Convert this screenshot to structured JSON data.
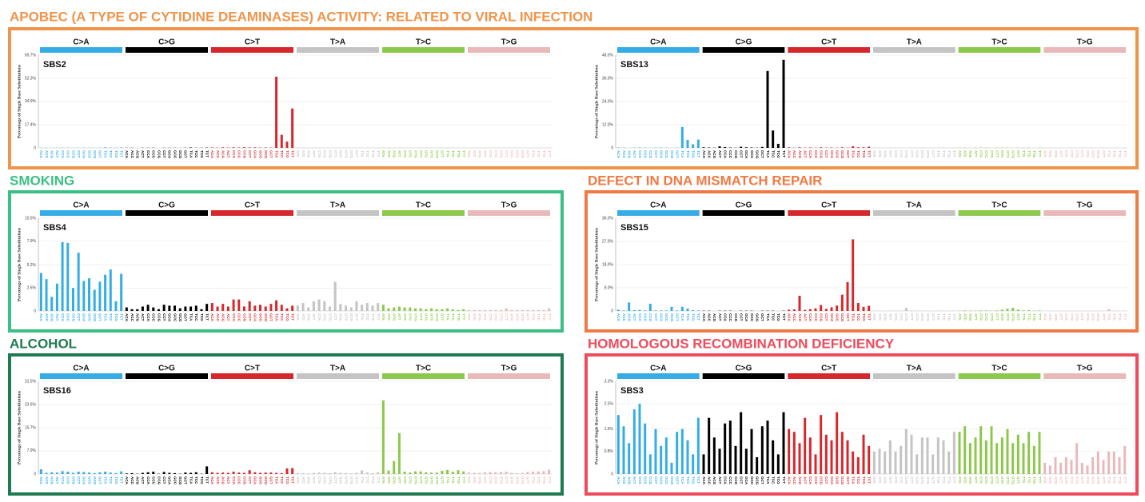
{
  "mutation_types": [
    {
      "name": "C>A",
      "color": "#35ace6"
    },
    {
      "name": "C>G",
      "color": "#000000"
    },
    {
      "name": "C>T",
      "color": "#d6282c"
    },
    {
      "name": "T>A",
      "color": "#c4c4c4"
    },
    {
      "name": "T>C",
      "color": "#8cc84b"
    },
    {
      "name": "T>G",
      "color": "#e9b9b9"
    }
  ],
  "contexts": [
    "ACA",
    "ACC",
    "ACG",
    "ACT",
    "CCA",
    "CCC",
    "CCG",
    "CCT",
    "GCA",
    "GCC",
    "GCG",
    "GCT",
    "TCA",
    "TCC",
    "TCG",
    "TCT",
    "ACA",
    "ACC",
    "ACG",
    "ACT",
    "CCA",
    "CCC",
    "CCG",
    "CCT",
    "GCA",
    "GCC",
    "GCG",
    "GCT",
    "TCA",
    "TCC",
    "TCG",
    "TCT",
    "ACA",
    "ACC",
    "ACG",
    "ACT",
    "CCA",
    "CCC",
    "CCG",
    "CCT",
    "GCA",
    "GCC",
    "GCG",
    "GCT",
    "TCA",
    "TCC",
    "TCG",
    "TCT",
    "ATA",
    "ATC",
    "ATG",
    "ATT",
    "CTA",
    "CTC",
    "CTG",
    "CTT",
    "GTA",
    "GTC",
    "GTG",
    "GTT",
    "TTA",
    "TTC",
    "TTG",
    "TTT",
    "ATA",
    "ATC",
    "ATG",
    "ATT",
    "CTA",
    "CTC",
    "CTG",
    "CTT",
    "GTA",
    "GTC",
    "GTG",
    "GTT",
    "TTA",
    "TTC",
    "TTG",
    "TTT",
    "ATA",
    "ATC",
    "ATG",
    "ATT",
    "CTA",
    "CTC",
    "CTG",
    "CTT",
    "GTA",
    "GTC",
    "GTG",
    "GTT",
    "TTA",
    "TTC",
    "TTG",
    "TTT"
  ],
  "chart_data": [
    {
      "type": "bar",
      "title": "APOBEC (A TYPE OF CYTIDINE DEAMINASES) ACTIVITY: RELATED TO VIRAL INFECTION",
      "frame_color": "#f0944a",
      "signature": "SBS2",
      "ylabel": "Percentage of Single Base Substitutions",
      "ylim": [
        0,
        69.7
      ],
      "yticks": [
        0,
        {
          "value": 17.4,
          "label": "17.4%"
        },
        {
          "value": 34.9,
          "label": "34.9%"
        },
        {
          "value": 52.3,
          "label": "52.3%"
        },
        {
          "value": 69.7,
          "label": "69.7%"
        }
      ],
      "values": [
        0.1,
        0.1,
        0,
        0.1,
        0.1,
        0.1,
        0,
        0.1,
        0.1,
        0.1,
        0,
        0.1,
        0.4,
        0.2,
        0.1,
        0.3,
        0.1,
        0.1,
        0,
        0.1,
        0.1,
        0.1,
        0,
        0.1,
        0.1,
        0.1,
        0,
        0.1,
        0.3,
        0.1,
        0.1,
        0.2,
        0.3,
        0.2,
        0.4,
        0.2,
        0.4,
        0.3,
        0.5,
        0.3,
        0.4,
        0.2,
        0.3,
        0.2,
        53.5,
        9.8,
        4.7,
        29.6,
        0.1,
        0.1,
        0,
        0.1,
        0.1,
        0.1,
        0,
        0.1,
        0.1,
        0.1,
        0,
        0.1,
        0.1,
        0.1,
        0,
        0.1,
        0.1,
        0.1,
        0,
        0.1,
        0.1,
        0.1,
        0,
        0.1,
        0.1,
        0.1,
        0,
        0.1,
        0.1,
        0.1,
        0,
        0.1,
        0,
        0.1,
        0,
        0.1,
        0,
        0.1,
        0,
        0.1,
        0,
        0.1,
        0,
        0.1,
        0,
        0.1,
        0,
        0.1
      ]
    },
    {
      "type": "bar",
      "signature": "SBS13",
      "ylabel": "Percentage of Single Base Substitutions",
      "ylim": [
        0,
        48
      ],
      "yticks": [
        0,
        {
          "value": 12,
          "label": "12.0%"
        },
        {
          "value": 24,
          "label": "24.0%"
        },
        {
          "value": 36,
          "label": "36.0%"
        },
        {
          "value": 48,
          "label": "48.0%"
        }
      ],
      "values": [
        0.2,
        0.1,
        0,
        0.1,
        0.2,
        0.1,
        0,
        0.1,
        0.2,
        0.1,
        0,
        0.1,
        10.8,
        4.1,
        1.9,
        4.3,
        0.3,
        0.2,
        0.1,
        0.8,
        0.4,
        0.2,
        0.1,
        0.6,
        0.3,
        0.2,
        0.1,
        0.5,
        39.8,
        9.0,
        2.1,
        45.6,
        0.3,
        0.1,
        0.3,
        0.1,
        0.2,
        0.1,
        0.3,
        0.1,
        0.2,
        0.1,
        0.3,
        0.1,
        0.8,
        0.3,
        0.3,
        0.6,
        0.1,
        0.1,
        0,
        0.1,
        0.1,
        0.1,
        0,
        0.1,
        0.1,
        0.1,
        0,
        0.1,
        0.1,
        0.1,
        0,
        0.1,
        0.1,
        0.1,
        0,
        0.1,
        0.1,
        0.1,
        0,
        0.1,
        0.1,
        0.1,
        0,
        0.1,
        0.1,
        0.1,
        0,
        0.1,
        0,
        0.1,
        0,
        0.1,
        0,
        0.1,
        0,
        0.1,
        0,
        0.1,
        0,
        0.1,
        0,
        0.1,
        0,
        0.1
      ]
    },
    {
      "type": "bar",
      "title": "SMOKING",
      "frame_color": "#3cbf84",
      "signature": "SBS4",
      "ylabel": "Percentage of Single Base Substitutions",
      "ylim": [
        0,
        10.5
      ],
      "yticks": [
        0,
        {
          "value": 2.6,
          "label": "2.6%"
        },
        {
          "value": 5.2,
          "label": "5.2%"
        },
        {
          "value": 7.9,
          "label": "7.9%"
        },
        {
          "value": 10.5,
          "label": "10.5%"
        }
      ],
      "values": [
        4.3,
        3.6,
        1.6,
        3.1,
        7.8,
        7.7,
        2.6,
        6.6,
        3.4,
        3.7,
        2.4,
        3.3,
        4.1,
        4.7,
        1.1,
        4.2,
        0.4,
        0.2,
        0.2,
        0.5,
        0.7,
        0.4,
        0.2,
        0.7,
        0.6,
        0.6,
        0.3,
        0.5,
        0.5,
        0.6,
        0.2,
        0.8,
        0.9,
        0.5,
        0.8,
        0.5,
        1.3,
        1.3,
        0.5,
        1.1,
        0.6,
        0.7,
        0.5,
        0.8,
        1.2,
        0.7,
        0.3,
        0.6,
        0.6,
        0.9,
        0.4,
        1.1,
        1.3,
        1.1,
        0.5,
        3.3,
        0.8,
        0.6,
        0.4,
        1.1,
        0.7,
        0.9,
        0.6,
        0.9,
        0.7,
        0.3,
        0.4,
        0.5,
        0.4,
        0.4,
        0.3,
        0.3,
        0.2,
        0.3,
        0.2,
        0.2,
        0.3,
        0.2,
        0.1,
        0.2,
        0.1,
        0.1,
        0.1,
        0.1,
        0.1,
        0.1,
        0.1,
        0.3,
        0.1,
        0.1,
        0.1,
        0.1,
        0.1,
        0.1,
        0.1,
        0.3
      ]
    },
    {
      "type": "bar",
      "title": "DEFECT IN DNA MISMATCH REPAIR",
      "frame_color": "#ef7a45",
      "signature": "SBS15",
      "ylabel": "Percentage of Single Base Substitutions",
      "ylim": [
        0,
        36
      ],
      "yticks": [
        0,
        {
          "value": 9,
          "label": "9.0%"
        },
        {
          "value": 18,
          "label": "18.0%"
        },
        {
          "value": 27,
          "label": "27.0%"
        },
        {
          "value": 36,
          "label": "36.0%"
        }
      ],
      "values": [
        0.5,
        0.2,
        3.3,
        0.3,
        0.4,
        0.2,
        2.8,
        0.2,
        0.2,
        0.2,
        1.6,
        0.2,
        1.6,
        0.9,
        0.3,
        0.2,
        0.1,
        0.1,
        0,
        0.1,
        0.1,
        0.1,
        0,
        0.1,
        0.1,
        0.1,
        0,
        0.1,
        0.1,
        0.1,
        0,
        0.1,
        0.5,
        0.6,
        5.9,
        0.4,
        0.7,
        1.0,
        2.3,
        0.8,
        1.4,
        2.1,
        6.3,
        11.2,
        27.8,
        3.1,
        1.6,
        2.0,
        0.1,
        0.1,
        0,
        0.1,
        0.1,
        0.1,
        1.2,
        0.1,
        0.1,
        0.1,
        0,
        0.1,
        0.1,
        0.1,
        0,
        0.1,
        0.1,
        0.2,
        0.1,
        0.1,
        0.2,
        0.2,
        0.1,
        0.2,
        0.5,
        0.9,
        1.2,
        0.5,
        0.2,
        0.3,
        0.1,
        0.2,
        0,
        0.1,
        0,
        0.1,
        0,
        0.1,
        0,
        0.1,
        0,
        0.1,
        0,
        0.1,
        0.7,
        0.1,
        0,
        0.1
      ]
    },
    {
      "type": "bar",
      "title": "ALCOHOL",
      "frame_color": "#1e7a50",
      "signature": "SBS16",
      "ylabel": "Percentage of Single Base Substitutions",
      "ylim": [
        0,
        31.5
      ],
      "yticks": [
        0,
        {
          "value": 7.9,
          "label": "7.9%"
        },
        {
          "value": 15.7,
          "label": "15.7%"
        },
        {
          "value": 23.6,
          "label": "23.6%"
        },
        {
          "value": 31.5,
          "label": "31.5%"
        }
      ],
      "values": [
        1.6,
        0.4,
        0.6,
        0.5,
        1.0,
        0.8,
        0.4,
        0.8,
        0.7,
        0.5,
        0.3,
        0.6,
        0.8,
        0.5,
        0.3,
        0.9,
        0.2,
        0.3,
        0.1,
        0.4,
        0.6,
        0.8,
        0.1,
        0.7,
        0.4,
        0.3,
        0.1,
        0.5,
        0.4,
        0.6,
        0.1,
        2.6,
        0.6,
        0.4,
        0.5,
        0.4,
        0.8,
        0.5,
        0.4,
        1.3,
        0.6,
        0.4,
        0.5,
        0.5,
        0.4,
        0.3,
        1.9,
        2.0,
        0.3,
        0.3,
        0.2,
        0.4,
        0.5,
        0.4,
        0.3,
        0.6,
        0.4,
        0.3,
        0.2,
        0.4,
        1.2,
        0.5,
        0.3,
        0.6,
        25.0,
        1.2,
        4.4,
        13.9,
        0.8,
        0.5,
        0.9,
        0.9,
        0.6,
        0.5,
        0.5,
        1.1,
        1.4,
        0.8,
        1.3,
        0.9,
        0.5,
        0.4,
        0.4,
        0.6,
        0.7,
        0.6,
        0.7,
        0.8,
        0.4,
        0.3,
        0.4,
        0.7,
        0.8,
        0.9,
        1.0,
        1.5
      ]
    },
    {
      "type": "bar",
      "title": "HOMOLOGOUS RECOMBINATION DEFICIENCY",
      "frame_color": "#ee4b5b",
      "signature": "SBS3",
      "ylabel": "Percentage of Single Base Substitutions",
      "ylim": [
        0,
        3.3
      ],
      "yticks": [
        0,
        {
          "value": 0.8,
          "label": "0.8%"
        },
        {
          "value": 1.6,
          "label": "1.6%"
        },
        {
          "value": 2.5,
          "label": "2.5%"
        },
        {
          "value": 3.3,
          "label": "3.3%"
        }
      ],
      "values": [
        2.1,
        1.7,
        1.1,
        2.3,
        2.5,
        1.8,
        0.7,
        1.6,
        1.0,
        1.3,
        0.4,
        1.5,
        1.6,
        1.2,
        0.7,
        2.0,
        0.7,
        2.0,
        1.3,
        0.9,
        1.8,
        1.9,
        1.0,
        2.2,
        0.9,
        1.6,
        0.6,
        1.7,
        1.9,
        1.2,
        0.7,
        2.2,
        1.6,
        1.5,
        1.1,
        2.0,
        1.3,
        0.7,
        2.1,
        1.4,
        1.2,
        2.2,
        1.5,
        1.2,
        0.8,
        0.6,
        1.4,
        1.0,
        0.8,
        0.9,
        0.8,
        1.2,
        0.8,
        1.0,
        1.6,
        1.4,
        0.7,
        1.3,
        1.3,
        0.7,
        1.3,
        1.2,
        0.8,
        1.5,
        1.5,
        1.7,
        1.1,
        1.3,
        1.7,
        1.2,
        1.7,
        1.1,
        1.3,
        1.6,
        1.1,
        1.4,
        1.1,
        1.5,
        1.0,
        1.5,
        0.4,
        0.3,
        0.6,
        0.4,
        0.6,
        0.5,
        1.1,
        0.4,
        0.3,
        0.6,
        0.8,
        0.5,
        0.8,
        0.8,
        0.6,
        1.0
      ]
    }
  ]
}
